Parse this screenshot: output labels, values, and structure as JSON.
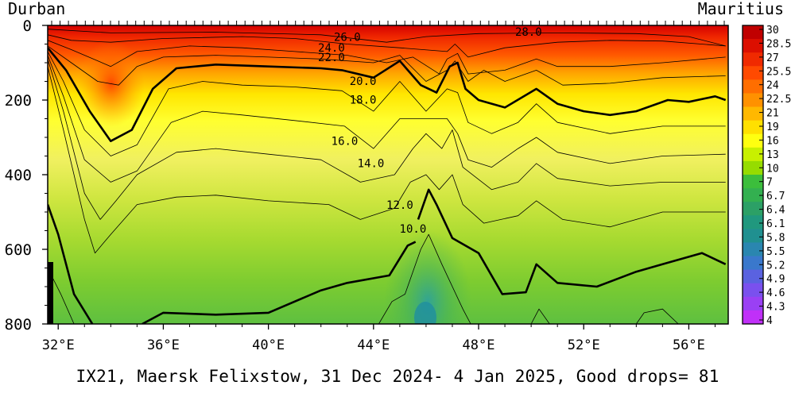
{
  "chart_data": {
    "type": "heatmap",
    "title": "IX21, Maersk Felixstow, 31 Dec 2024- 4 Jan 2025, Good drops= 81",
    "left_label": "Durban",
    "right_label": "Mauritius",
    "x_ticks": [
      "32°E",
      "36°E",
      "40°E",
      "44°E",
      "48°E",
      "52°E",
      "56°E"
    ],
    "x_tick_values": [
      32,
      36,
      40,
      44,
      48,
      52,
      56
    ],
    "xlim": [
      31.6,
      57.5
    ],
    "y_ticks": [
      "0",
      "200",
      "400",
      "600",
      "800"
    ],
    "y_tick_values": [
      0,
      200,
      400,
      600,
      800
    ],
    "ylim": [
      0,
      800
    ],
    "y_inverted": true,
    "colorbar_labels": [
      "30",
      "28.5",
      "27",
      "25.5",
      "24",
      "22.5",
      "21",
      "19",
      "16",
      "13",
      "10",
      "7",
      "6.7",
      "6.4",
      "6.1",
      "5.8",
      "5.5",
      "5.2",
      "4.9",
      "4.6",
      "4.3",
      "4"
    ],
    "colorbar_colors": [
      "#c00000",
      "#dc0f00",
      "#f02a00",
      "#ff4a00",
      "#ff6e00",
      "#ff9100",
      "#ffb800",
      "#ffe000",
      "#ffff10",
      "#c8f000",
      "#96dc00",
      "#3cbe3c",
      "#33b050",
      "#2ca066",
      "#20987e",
      "#209090",
      "#2a86b0",
      "#3a78cc",
      "#5a62e0",
      "#7a50ee",
      "#9a40f4",
      "#c030f8"
    ],
    "contour_labels": [
      {
        "text": "26.0",
        "x": 43.0,
        "y": 42
      },
      {
        "text": "28.0",
        "x": 49.9,
        "y": 28
      },
      {
        "text": "24.0",
        "x": 42.4,
        "y": 70
      },
      {
        "text": "22.0",
        "x": 42.4,
        "y": 96
      },
      {
        "text": "20.0",
        "x": 43.6,
        "y": 160
      },
      {
        "text": "18.0",
        "x": 43.6,
        "y": 210
      },
      {
        "text": "16.0",
        "x": 42.9,
        "y": 320
      },
      {
        "text": "14.0",
        "x": 43.9,
        "y": 380
      },
      {
        "text": "12.0",
        "x": 45.0,
        "y": 492
      },
      {
        "text": "10.0",
        "x": 45.5,
        "y": 555
      }
    ],
    "contours": [
      {
        "level": 28,
        "bold": false,
        "points": [
          [
            31.6,
            10
          ],
          [
            34,
            20
          ],
          [
            38,
            18
          ],
          [
            42,
            25
          ],
          [
            44.5,
            45
          ],
          [
            46,
            30
          ],
          [
            48,
            22
          ],
          [
            51,
            20
          ],
          [
            54,
            22
          ],
          [
            56,
            30
          ],
          [
            57.4,
            55
          ]
        ]
      },
      {
        "level": 26,
        "bold": false,
        "points": [
          [
            31.6,
            25
          ],
          [
            32.5,
            40
          ],
          [
            34,
            45
          ],
          [
            36,
            35
          ],
          [
            39,
            30
          ],
          [
            41,
            35
          ],
          [
            43,
            50
          ],
          [
            45,
            60
          ],
          [
            46.8,
            70
          ],
          [
            47.1,
            50
          ],
          [
            47.6,
            85
          ],
          [
            49,
            60
          ],
          [
            51,
            45
          ],
          [
            53,
            40
          ],
          [
            55,
            42
          ],
          [
            57.4,
            55
          ]
        ]
      },
      {
        "level": 24,
        "bold": false,
        "points": [
          [
            31.6,
            40
          ],
          [
            32.5,
            65
          ],
          [
            34,
            110
          ],
          [
            35,
            70
          ],
          [
            37,
            55
          ],
          [
            39,
            60
          ],
          [
            41,
            70
          ],
          [
            43,
            80
          ],
          [
            44.5,
            100
          ],
          [
            45.5,
            85
          ],
          [
            46.5,
            130
          ],
          [
            46.8,
            90
          ],
          [
            47.2,
            75
          ],
          [
            47.6,
            130
          ],
          [
            49,
            120
          ],
          [
            50.2,
            90
          ],
          [
            51,
            110
          ],
          [
            53,
            110
          ],
          [
            55,
            100
          ],
          [
            57.4,
            85
          ]
        ]
      },
      {
        "level": 22,
        "bold": false,
        "points": [
          [
            31.6,
            55
          ],
          [
            32.5,
            100
          ],
          [
            33.5,
            150
          ],
          [
            34.3,
            160
          ],
          [
            35,
            110
          ],
          [
            36,
            85
          ],
          [
            38,
            80
          ],
          [
            40,
            85
          ],
          [
            42,
            90
          ],
          [
            44,
            100
          ],
          [
            45,
            80
          ],
          [
            46,
            150
          ],
          [
            46.8,
            120
          ],
          [
            47.1,
            95
          ],
          [
            47.6,
            150
          ],
          [
            48.2,
            120
          ],
          [
            49,
            150
          ],
          [
            50.2,
            120
          ],
          [
            51.2,
            160
          ],
          [
            53,
            155
          ],
          [
            55,
            140
          ],
          [
            57.4,
            135
          ]
        ]
      },
      {
        "level": 20,
        "bold": true,
        "points": [
          [
            31.6,
            60
          ],
          [
            32.3,
            120
          ],
          [
            33.2,
            230
          ],
          [
            34.0,
            310
          ],
          [
            34.8,
            280
          ],
          [
            35.6,
            170
          ],
          [
            36.5,
            115
          ],
          [
            38,
            105
          ],
          [
            40,
            110
          ],
          [
            42,
            115
          ],
          [
            42.8,
            120
          ],
          [
            44,
            140
          ],
          [
            45,
            95
          ],
          [
            45.8,
            160
          ],
          [
            46.4,
            180
          ],
          [
            46.9,
            110
          ],
          [
            47.2,
            100
          ],
          [
            47.5,
            170
          ],
          [
            48.0,
            200
          ],
          [
            49,
            220
          ],
          [
            50.2,
            170
          ],
          [
            51.0,
            210
          ],
          [
            52,
            230
          ],
          [
            53,
            240
          ],
          [
            54,
            230
          ],
          [
            55.2,
            200
          ],
          [
            56,
            205
          ],
          [
            57.0,
            190
          ],
          [
            57.4,
            200
          ]
        ]
      },
      {
        "level": 18,
        "bold": false,
        "points": [
          [
            31.6,
            70
          ],
          [
            32.2,
            150
          ],
          [
            33,
            280
          ],
          [
            34,
            350
          ],
          [
            35,
            320
          ],
          [
            36.2,
            170
          ],
          [
            37.5,
            150
          ],
          [
            39,
            160
          ],
          [
            41,
            165
          ],
          [
            42.8,
            175
          ],
          [
            44,
            230
          ],
          [
            45,
            150
          ],
          [
            46,
            230
          ],
          [
            46.8,
            170
          ],
          [
            47.2,
            180
          ],
          [
            47.6,
            260
          ],
          [
            48.5,
            290
          ],
          [
            49.5,
            260
          ],
          [
            50.2,
            210
          ],
          [
            51,
            260
          ],
          [
            53,
            290
          ],
          [
            55,
            270
          ],
          [
            57.4,
            270
          ]
        ]
      },
      {
        "level": 16,
        "bold": false,
        "points": [
          [
            31.6,
            80
          ],
          [
            32.2,
            190
          ],
          [
            33,
            360
          ],
          [
            34,
            420
          ],
          [
            35,
            390
          ],
          [
            36.3,
            260
          ],
          [
            37.5,
            230
          ],
          [
            39,
            240
          ],
          [
            41,
            255
          ],
          [
            42.9,
            270
          ],
          [
            44,
            330
          ],
          [
            45,
            250
          ],
          [
            46,
            250
          ],
          [
            46.8,
            250
          ],
          [
            47.2,
            290
          ],
          [
            47.6,
            360
          ],
          [
            48.5,
            380
          ],
          [
            49.5,
            330
          ],
          [
            50.2,
            300
          ],
          [
            51,
            340
          ],
          [
            53,
            370
          ],
          [
            55,
            350
          ],
          [
            57.4,
            345
          ]
        ]
      },
      {
        "level": 14,
        "bold": false,
        "points": [
          [
            31.6,
            90
          ],
          [
            32.2,
            230
          ],
          [
            33,
            450
          ],
          [
            33.6,
            520
          ],
          [
            34.2,
            470
          ],
          [
            35,
            400
          ],
          [
            36.5,
            340
          ],
          [
            38,
            330
          ],
          [
            40,
            345
          ],
          [
            42,
            360
          ],
          [
            43.5,
            420
          ],
          [
            44.8,
            400
          ],
          [
            45.5,
            330
          ],
          [
            46,
            290
          ],
          [
            46.6,
            330
          ],
          [
            47.0,
            280
          ],
          [
            47.4,
            380
          ],
          [
            48.5,
            440
          ],
          [
            49.5,
            420
          ],
          [
            50.2,
            370
          ],
          [
            51,
            410
          ],
          [
            53,
            430
          ],
          [
            55,
            420
          ],
          [
            57.4,
            420
          ]
        ]
      },
      {
        "level": 12,
        "bold": false,
        "points": [
          [
            31.6,
            110
          ],
          [
            32.2,
            280
          ],
          [
            33,
            520
          ],
          [
            33.4,
            610
          ],
          [
            34.0,
            560
          ],
          [
            35,
            480
          ],
          [
            36.5,
            460
          ],
          [
            38,
            455
          ],
          [
            40,
            470
          ],
          [
            42.3,
            480
          ],
          [
            43.5,
            520
          ],
          [
            44.8,
            490
          ],
          [
            45.4,
            420
          ],
          [
            46,
            400
          ],
          [
            46.5,
            440
          ],
          [
            47.0,
            400
          ],
          [
            47.4,
            480
          ],
          [
            48.2,
            530
          ],
          [
            49.5,
            510
          ],
          [
            50.2,
            470
          ],
          [
            51.2,
            520
          ],
          [
            53,
            540
          ],
          [
            55,
            500
          ],
          [
            57.4,
            500
          ]
        ]
      },
      {
        "level": 10,
        "bold": true,
        "points": [
          [
            31.6,
            480
          ],
          [
            32.0,
            560
          ],
          [
            32.6,
            720
          ],
          [
            33.3,
            800
          ]
        ]
      },
      {
        "level": 10,
        "bold": true,
        "points": [
          [
            35.2,
            800
          ],
          [
            36,
            770
          ],
          [
            38,
            775
          ],
          [
            40,
            770
          ],
          [
            42,
            710
          ],
          [
            43,
            690
          ],
          [
            44.6,
            670
          ],
          [
            45.3,
            590
          ],
          [
            45.6,
            580
          ]
        ]
      },
      {
        "level": 10,
        "bold": true,
        "points": [
          [
            45.7,
            520
          ],
          [
            46.1,
            440
          ],
          [
            46.4,
            480
          ],
          [
            47.0,
            570
          ],
          [
            48,
            610
          ],
          [
            48.9,
            720
          ],
          [
            49.8,
            715
          ],
          [
            50.2,
            640
          ],
          [
            51,
            690
          ],
          [
            52.5,
            700
          ],
          [
            54,
            660
          ],
          [
            55.0,
            640
          ],
          [
            56.5,
            610
          ],
          [
            57.4,
            640
          ]
        ]
      },
      {
        "level": 8,
        "bold": false,
        "points": [
          [
            31.6,
            650
          ],
          [
            32.1,
            720
          ],
          [
            32.6,
            800
          ]
        ]
      },
      {
        "level": 8,
        "bold": false,
        "points": [
          [
            44.2,
            800
          ],
          [
            44.7,
            740
          ],
          [
            45.2,
            720
          ],
          [
            45.8,
            600
          ],
          [
            46.1,
            560
          ],
          [
            46.6,
            640
          ],
          [
            47.4,
            760
          ],
          [
            47.7,
            800
          ]
        ]
      },
      {
        "level": 8,
        "bold": false,
        "points": [
          [
            50.0,
            800
          ],
          [
            50.3,
            760
          ],
          [
            50.7,
            800
          ]
        ]
      },
      {
        "level": 8,
        "bold": false,
        "points": [
          [
            54.0,
            800
          ],
          [
            54.3,
            770
          ],
          [
            55.0,
            760
          ],
          [
            55.6,
            800
          ]
        ]
      }
    ]
  }
}
